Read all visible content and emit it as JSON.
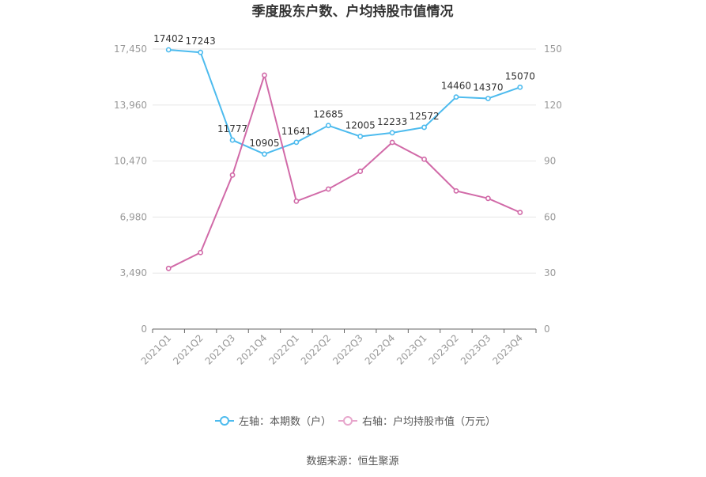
{
  "chart_data": {
    "type": "line",
    "title": "季度股东户数、户均持股市值情况",
    "categories": [
      "2021Q1",
      "2021Q2",
      "2021Q3",
      "2021Q4",
      "2022Q1",
      "2022Q2",
      "2022Q3",
      "2022Q4",
      "2023Q1",
      "2023Q2",
      "2023Q3",
      "2023Q4"
    ],
    "left_axis": {
      "min": 0,
      "max": 17450,
      "ticks": [
        "0",
        "3,490",
        "6,980",
        "10,470",
        "13,960",
        "17,450"
      ],
      "tick_values": [
        0,
        3490,
        6980,
        10470,
        13960,
        17450
      ]
    },
    "right_axis": {
      "min": 0,
      "max": 150,
      "ticks": [
        "0",
        "30",
        "60",
        "90",
        "120",
        "150"
      ],
      "tick_values": [
        0,
        30,
        60,
        90,
        120,
        150
      ]
    },
    "series": [
      {
        "name": "左轴：本期数（户）",
        "axis": "left",
        "color": "#4dbbee",
        "values": [
          17402,
          17243,
          11777,
          10905,
          11641,
          12685,
          12005,
          12233,
          12572,
          14460,
          14370,
          15070
        ],
        "labels": [
          "17402",
          "17243",
          "11777",
          "10905",
          "11641",
          "12685",
          "12005",
          "12233",
          "12572",
          "14460",
          "14370",
          "15070"
        ]
      },
      {
        "name": "右轴：户均持股市值（万元）",
        "axis": "right",
        "color": "#d16aa8",
        "values": [
          32.5,
          41,
          82.5,
          136,
          68.5,
          75,
          84.5,
          100,
          91,
          74,
          70,
          62.5
        ]
      }
    ],
    "grid": true,
    "legend_position": "bottom",
    "source": "数据来源：恒生聚源"
  }
}
